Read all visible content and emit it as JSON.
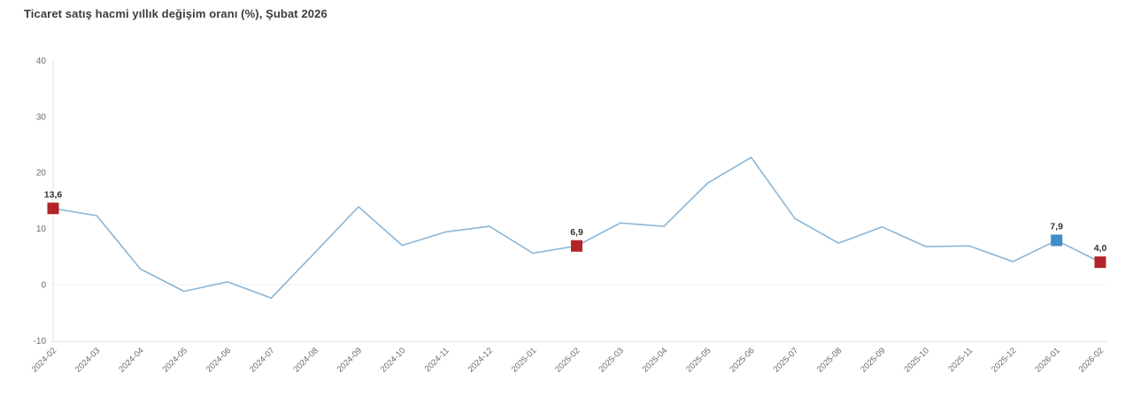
{
  "header": {
    "title": "Ticaret satış hacmi yıllık değişim oranı (%), Şubat 2026"
  },
  "chart_data": {
    "type": "line",
    "title": "Ticaret satış hacmi yıllık değişim oranı (%), Şubat 2026",
    "xlabel": "",
    "ylabel": "",
    "ylim": [
      -10,
      40
    ],
    "yticks": [
      40,
      30,
      20,
      10,
      0,
      -10
    ],
    "grid": "horizontal zero line only",
    "legend": "none",
    "categories": [
      "2024-02",
      "2024-03",
      "2024-04",
      "2024-05",
      "2024-06",
      "2024-07",
      "2024-08",
      "2024-09",
      "2024-10",
      "2024-11",
      "2024-12",
      "2025-01",
      "2025-02",
      "2025-03",
      "2025-04",
      "2025-05",
      "2025-06",
      "2025-07",
      "2025-08",
      "2025-09",
      "2025-10",
      "2025-11",
      "2025-12",
      "2026-01",
      "2026-02"
    ],
    "values": [
      13.6,
      12.3,
      2.8,
      -1.2,
      0.5,
      -2.4,
      5.7,
      13.9,
      7.0,
      9.4,
      10.4,
      5.6,
      6.9,
      11.0,
      10.4,
      18.1,
      22.7,
      11.8,
      7.4,
      10.3,
      6.8,
      6.9,
      4.1,
      7.9,
      4.0
    ],
    "marked_points": [
      {
        "index": 0,
        "category": "2024-02",
        "value": 13.6,
        "label": "13,6",
        "color": "#b22427"
      },
      {
        "index": 12,
        "category": "2025-02",
        "value": 6.9,
        "label": "6,9",
        "color": "#b22427"
      },
      {
        "index": 23,
        "category": "2026-01",
        "value": 7.9,
        "label": "7,9",
        "color": "#3d8ec9"
      },
      {
        "index": 24,
        "category": "2026-02",
        "value": 4.0,
        "label": "4,0",
        "color": "#b22427"
      }
    ],
    "colors": {
      "line": "#8ab6d6",
      "axis": "#e2e2e2",
      "gridline": "#ededed",
      "tick_label": "#6b6b6b",
      "value_label": "#333333",
      "title": "#3c3c3c",
      "background": "#ffffff"
    }
  }
}
